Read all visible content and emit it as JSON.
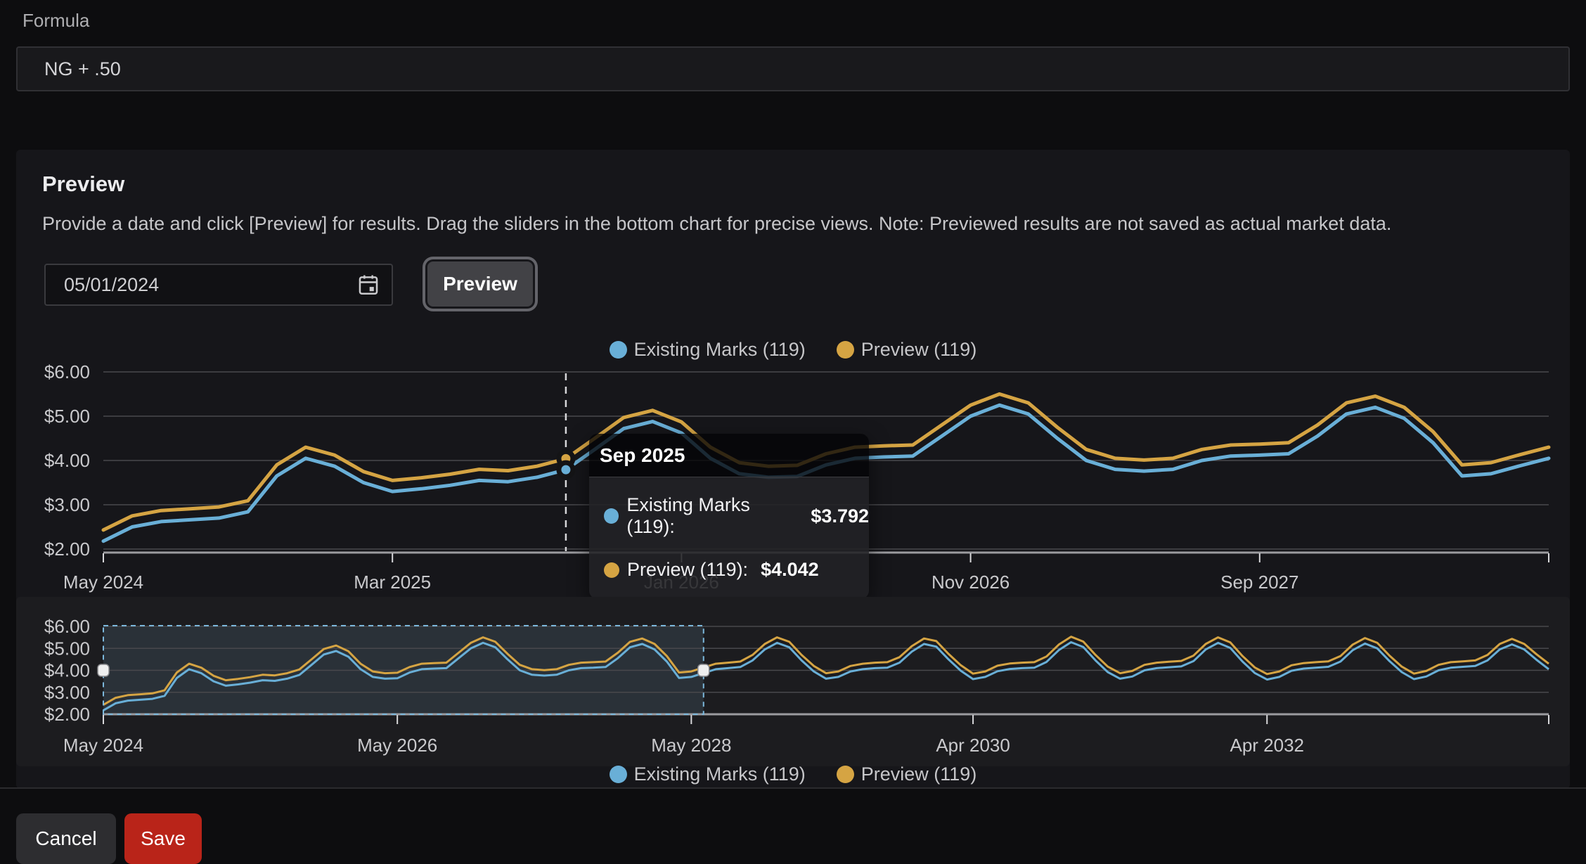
{
  "formula": {
    "label": "Formula",
    "value": "NG + .50"
  },
  "preview_section": {
    "title": "Preview",
    "description": "Provide a date and click [Preview] for results. Drag the sliders in the bottom chart for precise views. Note: Previewed results are not saved as actual market data.",
    "date_value": "05/01/2024",
    "preview_button": "Preview"
  },
  "tooltip": {
    "title": "Sep 2025",
    "rows": [
      {
        "label": "Existing Marks (119):",
        "value": "$3.792",
        "series": "existing"
      },
      {
        "label": "Preview (119):",
        "value": "$4.042",
        "series": "preview"
      }
    ]
  },
  "footer": {
    "cancel": "Cancel",
    "save": "Save"
  },
  "colors": {
    "existing_series": "#69AFD7",
    "preview_series": "#D5A443",
    "save_button_bg": "#B92419",
    "brush_fill": "rgba(125,180,215,0.14)",
    "brush_border": "#7CB8DC",
    "gridline": "#48484c",
    "axis_line": "#9b9b9f",
    "cursor_line": "#d6d6d9",
    "dot_halo": "#141416"
  },
  "chart_data": {
    "type": "line",
    "start_month_label": "May 2024",
    "legend": [
      {
        "label": "Existing Marks (119)",
        "series": "existing"
      },
      {
        "label": "Preview (119)",
        "series": "preview"
      }
    ],
    "y_ticks": [
      {
        "label": "$6.00",
        "value": 6
      },
      {
        "label": "$5.00",
        "value": 5
      },
      {
        "label": "$4.00",
        "value": 4
      },
      {
        "label": "$3.00",
        "value": 3
      },
      {
        "label": "$2.00",
        "value": 2
      }
    ],
    "ylim": [
      2,
      6
    ],
    "existing_marks": [
      2.18,
      2.5,
      2.62,
      2.66,
      2.7,
      2.84,
      3.65,
      4.05,
      3.87,
      3.5,
      3.3,
      3.36,
      3.44,
      3.55,
      3.52,
      3.62,
      3.79,
      4.25,
      4.72,
      4.88,
      4.62,
      4.05,
      3.7,
      3.62,
      3.64,
      3.9,
      4.05,
      4.08,
      4.1,
      4.55,
      5.0,
      5.25,
      5.05,
      4.5,
      4.0,
      3.8,
      3.76,
      3.8,
      4.0,
      4.1,
      4.12,
      4.15,
      4.55,
      5.05,
      5.2,
      4.95,
      4.4,
      3.65,
      3.7,
      3.88,
      4.05,
      4.1,
      4.15,
      4.45,
      4.95,
      5.25,
      5.05,
      4.45,
      3.95,
      3.62,
      3.7,
      3.95,
      4.05,
      4.1,
      4.12,
      4.35,
      4.85,
      5.2,
      5.08,
      4.5,
      3.98,
      3.6,
      3.7,
      3.96,
      4.06,
      4.1,
      4.12,
      4.38,
      4.92,
      5.28,
      5.06,
      4.45,
      3.92,
      3.62,
      3.72,
      4.0,
      4.1,
      4.14,
      4.18,
      4.42,
      4.95,
      5.25,
      5.02,
      4.4,
      3.88,
      3.58,
      3.7,
      3.98,
      4.08,
      4.12,
      4.16,
      4.4,
      4.92,
      5.22,
      5.0,
      4.42,
      3.92,
      3.6,
      3.72,
      4.0,
      4.12,
      4.16,
      4.2,
      4.45,
      4.95,
      5.18,
      4.95,
      4.48,
      4.05
    ],
    "preview": [
      2.43,
      2.75,
      2.87,
      2.91,
      2.95,
      3.09,
      3.9,
      4.3,
      4.12,
      3.75,
      3.55,
      3.61,
      3.69,
      3.8,
      3.77,
      3.87,
      4.04,
      4.5,
      4.97,
      5.13,
      4.87,
      4.3,
      3.95,
      3.87,
      3.89,
      4.15,
      4.3,
      4.33,
      4.35,
      4.8,
      5.25,
      5.5,
      5.3,
      4.75,
      4.25,
      4.05,
      4.01,
      4.05,
      4.25,
      4.35,
      4.37,
      4.4,
      4.8,
      5.3,
      5.45,
      5.2,
      4.65,
      3.9,
      3.95,
      4.13,
      4.3,
      4.35,
      4.4,
      4.7,
      5.2,
      5.5,
      5.3,
      4.7,
      4.2,
      3.87,
      3.95,
      4.2,
      4.3,
      4.35,
      4.37,
      4.6,
      5.1,
      5.45,
      5.33,
      4.75,
      4.23,
      3.85,
      3.95,
      4.21,
      4.31,
      4.35,
      4.37,
      4.63,
      5.17,
      5.53,
      5.31,
      4.7,
      4.17,
      3.87,
      3.97,
      4.25,
      4.35,
      4.39,
      4.43,
      4.67,
      5.2,
      5.5,
      5.27,
      4.65,
      4.13,
      3.83,
      3.95,
      4.23,
      4.33,
      4.37,
      4.41,
      4.65,
      5.17,
      5.47,
      5.25,
      4.67,
      4.17,
      3.85,
      3.97,
      4.25,
      4.37,
      4.41,
      4.45,
      4.7,
      5.2,
      5.43,
      5.2,
      4.73,
      4.3
    ],
    "main_chart": {
      "visible_months": [
        0,
        50
      ],
      "x_ticks": [
        {
          "label": "May 2024",
          "month": 0
        },
        {
          "label": "Mar 2025",
          "month": 10
        },
        {
          "label": "Jan 2026",
          "month": 20
        },
        {
          "label": "Nov 2026",
          "month": 30
        },
        {
          "label": "Sep 2027",
          "month": 40
        }
      ],
      "cursor": {
        "label": "Sep 2025",
        "month": 16,
        "existing_value": 3.792,
        "preview_value": 4.042
      }
    },
    "overview_chart": {
      "x_ticks": [
        {
          "label": "May 2024",
          "month": 0
        },
        {
          "label": "May 2026",
          "month": 24
        },
        {
          "label": "May 2028",
          "month": 48
        },
        {
          "label": "Apr 2030",
          "month": 71
        },
        {
          "label": "Apr 2032",
          "month": 95
        }
      ],
      "brush": {
        "start_month": 0,
        "end_month": 49
      }
    }
  }
}
